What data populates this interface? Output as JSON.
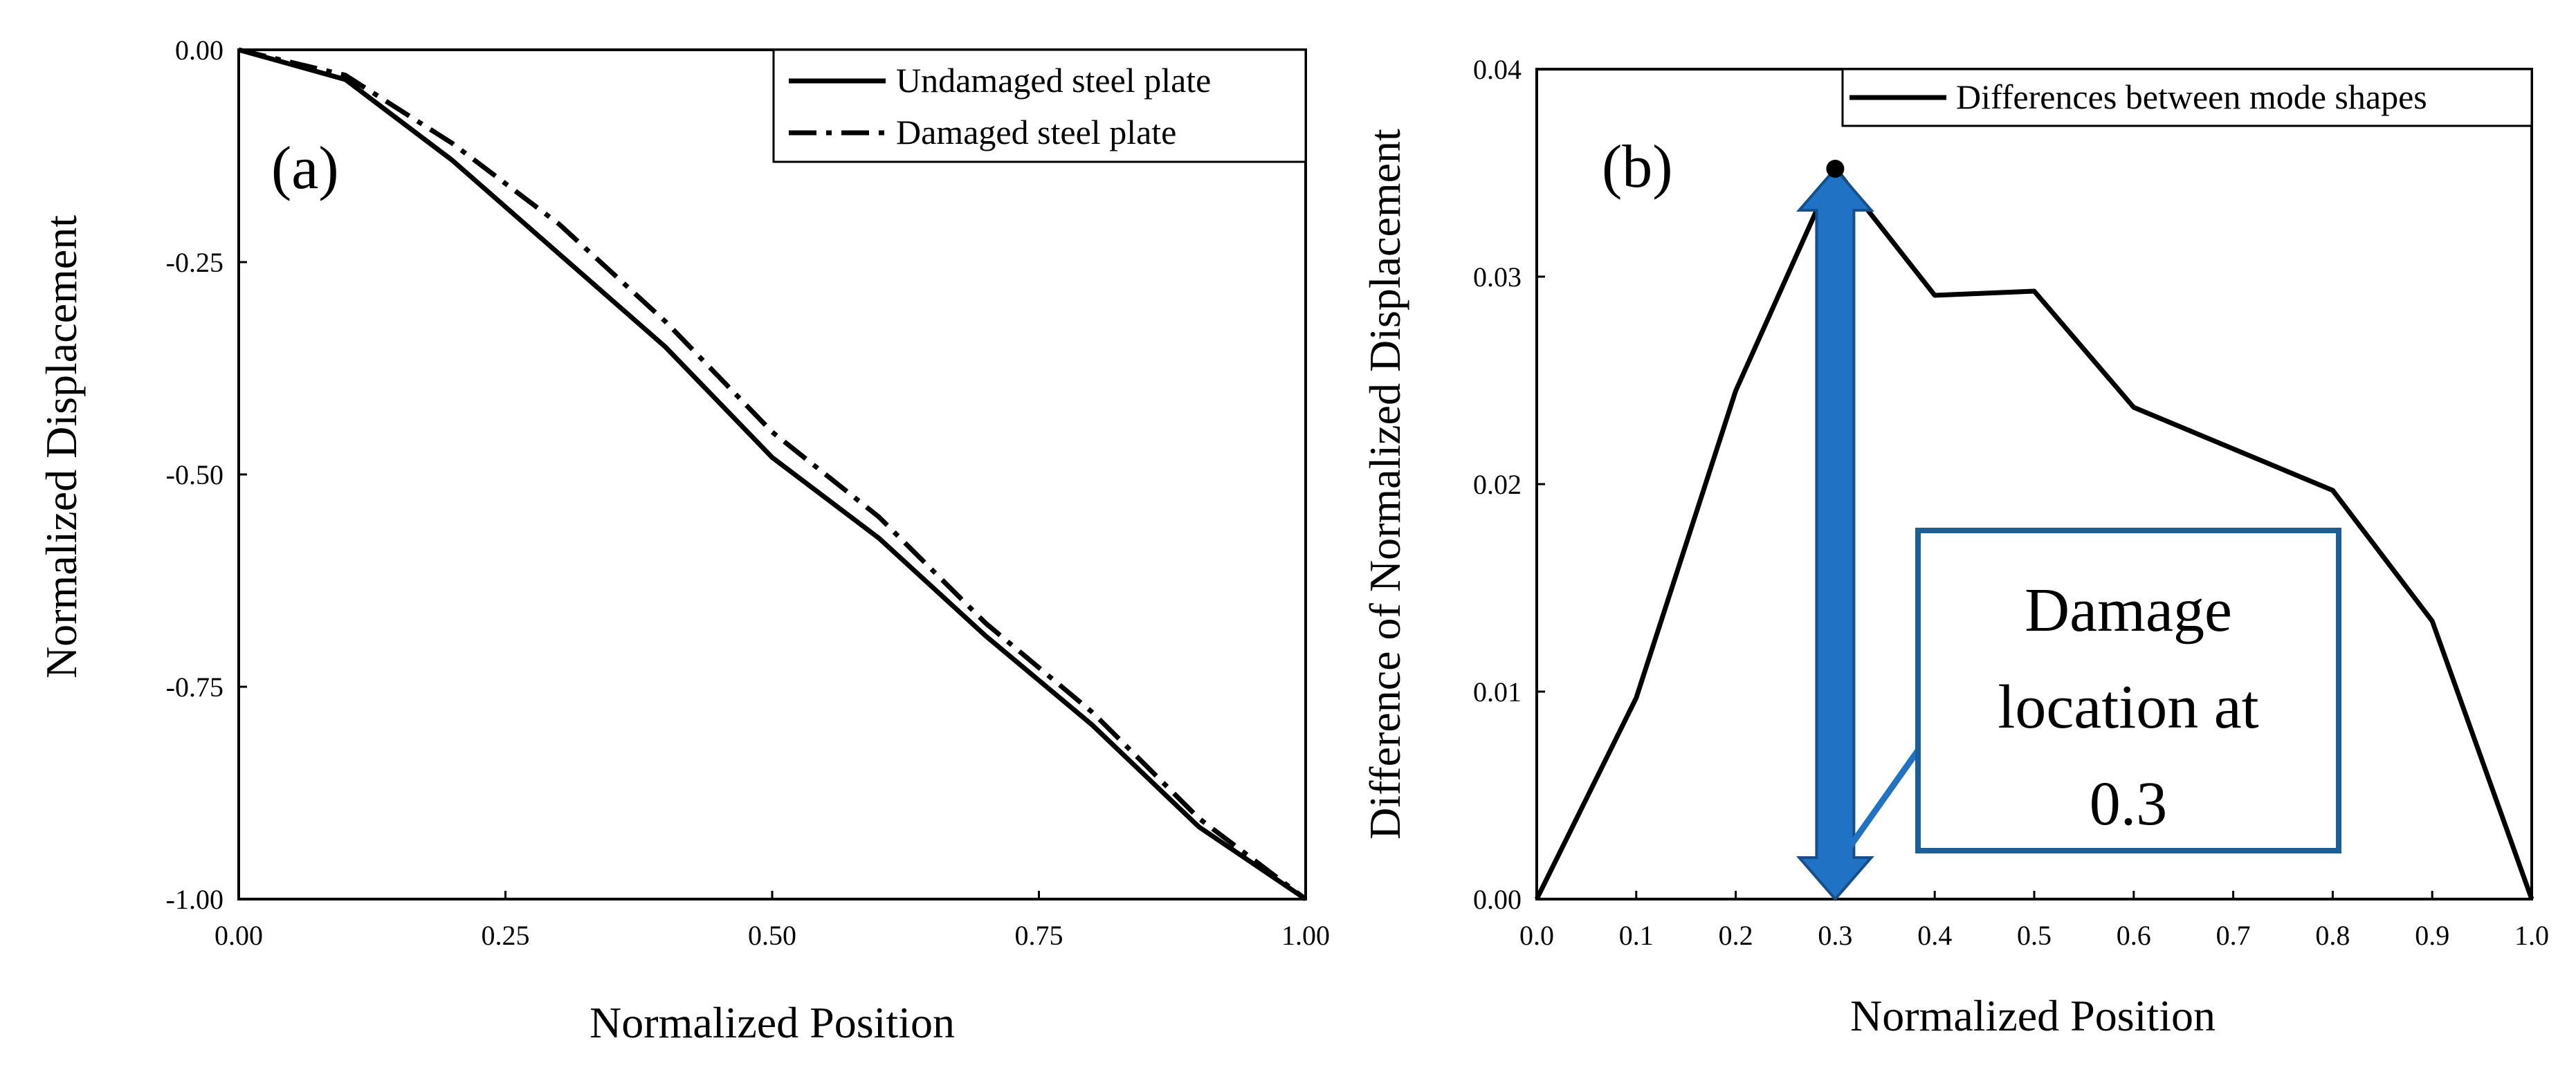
{
  "colors": {
    "arrow": "#1F72C4",
    "callout_border": "#1A5E9A",
    "line": "#000000"
  },
  "chart_data": [
    {
      "type": "line",
      "panel_label": "(a)",
      "xlabel": "Normalized Position",
      "ylabel": "Normalized Displacement",
      "xlim": [
        0,
        1
      ],
      "ylim": [
        -1,
        0
      ],
      "x_ticks": [
        0,
        0.25,
        0.5,
        0.75,
        1.0
      ],
      "x_tick_labels": [
        "0.00",
        "0.25",
        "0.50",
        "0.75",
        "1.00"
      ],
      "y_ticks": [
        0,
        -0.25,
        -0.5,
        -0.75,
        -1.0
      ],
      "y_tick_labels": [
        "0.00",
        "-0.25",
        "-0.50",
        "-0.75",
        "-1.00"
      ],
      "legend": {
        "placement": "top-right"
      },
      "series": [
        {
          "name": "Undamaged steel plate",
          "style": "solid",
          "x": [
            0,
            0.1,
            0.2,
            0.3,
            0.4,
            0.5,
            0.6,
            0.7,
            0.8,
            0.9,
            1.0
          ],
          "y": [
            0,
            -0.035,
            -0.13,
            -0.24,
            -0.35,
            -0.48,
            -0.575,
            -0.69,
            -0.795,
            -0.915,
            -1.0
          ]
        },
        {
          "name": "Damaged steel plate",
          "style": "dashdot",
          "x": [
            0,
            0.1,
            0.2,
            0.3,
            0.4,
            0.5,
            0.6,
            0.7,
            0.8,
            0.9,
            1.0
          ],
          "y": [
            0,
            -0.03,
            -0.11,
            -0.205,
            -0.32,
            -0.45,
            -0.55,
            -0.675,
            -0.78,
            -0.905,
            -1.0
          ]
        }
      ]
    },
    {
      "type": "line",
      "panel_label": "(b)",
      "xlabel": "Normalized Position",
      "ylabel": "Difference of Normalized Displacement",
      "xlim": [
        0,
        1
      ],
      "ylim": [
        0,
        0.04
      ],
      "x_ticks": [
        0,
        0.1,
        0.2,
        0.3,
        0.4,
        0.5,
        0.6,
        0.7,
        0.8,
        0.9,
        1.0
      ],
      "x_tick_labels": [
        "0.0",
        "0.1",
        "0.2",
        "0.3",
        "0.4",
        "0.5",
        "0.6",
        "0.7",
        "0.8",
        "0.9",
        "1.0"
      ],
      "y_ticks": [
        0,
        0.01,
        0.02,
        0.03,
        0.04
      ],
      "y_tick_labels": [
        "0.00",
        "0.01",
        "0.02",
        "0.03",
        "0.04"
      ],
      "legend": {
        "placement": "top-right"
      },
      "series": [
        {
          "name": "Differences between mode shapes",
          "style": "solid",
          "x": [
            0,
            0.1,
            0.2,
            0.3,
            0.4,
            0.5,
            0.6,
            0.7,
            0.8,
            0.9,
            1.0
          ],
          "y": [
            0,
            0.0097,
            0.0245,
            0.0352,
            0.0291,
            0.0293,
            0.0237,
            0.0217,
            0.0197,
            0.0134,
            0
          ]
        }
      ],
      "annotation": {
        "text_lines": [
          "Damage",
          "location at",
          "0.3"
        ],
        "arrow_x": 0.3,
        "arrow_from": 0,
        "arrow_to": 0.0352,
        "marker_x": 0.3,
        "marker_y": 0.0352
      }
    }
  ]
}
